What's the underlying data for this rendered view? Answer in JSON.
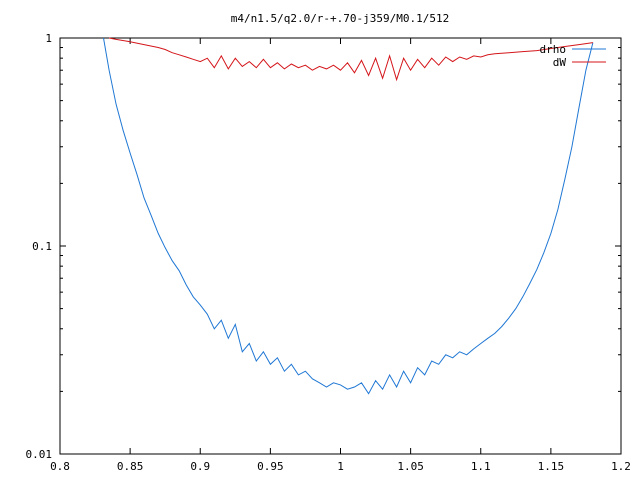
{
  "chart_data": {
    "type": "line",
    "title": "m4/n1.5/q2.0/r-+.70-j359/M0.1/512",
    "xlabel": "",
    "ylabel": "",
    "xlim": [
      0.8,
      1.2
    ],
    "ylim": [
      0.01,
      1
    ],
    "yscale": "log",
    "grid": false,
    "legend": "top-right",
    "xticks": [
      "0.8",
      "0.85",
      "0.9",
      "0.95",
      "1",
      "1.05",
      "1.1",
      "1.15",
      "1.2"
    ],
    "yticks": [
      "0.01",
      "0.1",
      "1"
    ],
    "series": [
      {
        "name": "drho",
        "color": "#1f77d4",
        "x": [
          0.831,
          0.835,
          0.84,
          0.845,
          0.85,
          0.855,
          0.86,
          0.865,
          0.87,
          0.875,
          0.88,
          0.885,
          0.89,
          0.895,
          0.9,
          0.905,
          0.91,
          0.915,
          0.92,
          0.925,
          0.93,
          0.935,
          0.94,
          0.945,
          0.95,
          0.955,
          0.96,
          0.965,
          0.97,
          0.975,
          0.98,
          0.985,
          0.99,
          0.995,
          1.0,
          1.005,
          1.01,
          1.015,
          1.02,
          1.025,
          1.03,
          1.035,
          1.04,
          1.045,
          1.05,
          1.055,
          1.06,
          1.065,
          1.07,
          1.075,
          1.08,
          1.085,
          1.09,
          1.095,
          1.1,
          1.105,
          1.11,
          1.115,
          1.12,
          1.125,
          1.13,
          1.135,
          1.14,
          1.145,
          1.15,
          1.155,
          1.16,
          1.165,
          1.17,
          1.175,
          1.18
        ],
        "y": [
          1.0,
          0.7,
          0.48,
          0.36,
          0.28,
          0.22,
          0.17,
          0.14,
          0.115,
          0.098,
          0.085,
          0.076,
          0.065,
          0.057,
          0.052,
          0.047,
          0.04,
          0.044,
          0.036,
          0.042,
          0.031,
          0.034,
          0.028,
          0.031,
          0.027,
          0.029,
          0.025,
          0.027,
          0.024,
          0.025,
          0.023,
          0.022,
          0.021,
          0.022,
          0.0215,
          0.0205,
          0.021,
          0.022,
          0.0195,
          0.0225,
          0.0205,
          0.024,
          0.021,
          0.025,
          0.022,
          0.026,
          0.024,
          0.028,
          0.027,
          0.03,
          0.029,
          0.031,
          0.03,
          0.032,
          0.034,
          0.036,
          0.038,
          0.041,
          0.045,
          0.05,
          0.057,
          0.066,
          0.077,
          0.093,
          0.115,
          0.15,
          0.21,
          0.3,
          0.46,
          0.7,
          0.95
        ]
      },
      {
        "name": "dW",
        "color": "#d4161b",
        "x": [
          0.835,
          0.84,
          0.85,
          0.86,
          0.87,
          0.875,
          0.88,
          0.885,
          0.89,
          0.895,
          0.9,
          0.905,
          0.91,
          0.915,
          0.92,
          0.925,
          0.93,
          0.935,
          0.94,
          0.945,
          0.95,
          0.955,
          0.96,
          0.965,
          0.97,
          0.975,
          0.98,
          0.985,
          0.99,
          0.995,
          1.0,
          1.005,
          1.01,
          1.015,
          1.02,
          1.025,
          1.03,
          1.035,
          1.04,
          1.045,
          1.05,
          1.055,
          1.06,
          1.065,
          1.07,
          1.075,
          1.08,
          1.085,
          1.09,
          1.095,
          1.1,
          1.105,
          1.11,
          1.12,
          1.13,
          1.14,
          1.15,
          1.16,
          1.17,
          1.18
        ],
        "y": [
          1.0,
          0.985,
          0.96,
          0.93,
          0.9,
          0.88,
          0.85,
          0.83,
          0.81,
          0.79,
          0.77,
          0.8,
          0.72,
          0.82,
          0.71,
          0.8,
          0.73,
          0.77,
          0.72,
          0.79,
          0.72,
          0.76,
          0.71,
          0.75,
          0.72,
          0.74,
          0.7,
          0.73,
          0.71,
          0.74,
          0.7,
          0.76,
          0.68,
          0.78,
          0.66,
          0.8,
          0.64,
          0.82,
          0.63,
          0.8,
          0.7,
          0.79,
          0.72,
          0.8,
          0.74,
          0.81,
          0.77,
          0.81,
          0.79,
          0.82,
          0.81,
          0.83,
          0.84,
          0.85,
          0.86,
          0.87,
          0.89,
          0.91,
          0.93,
          0.95
        ]
      }
    ]
  }
}
